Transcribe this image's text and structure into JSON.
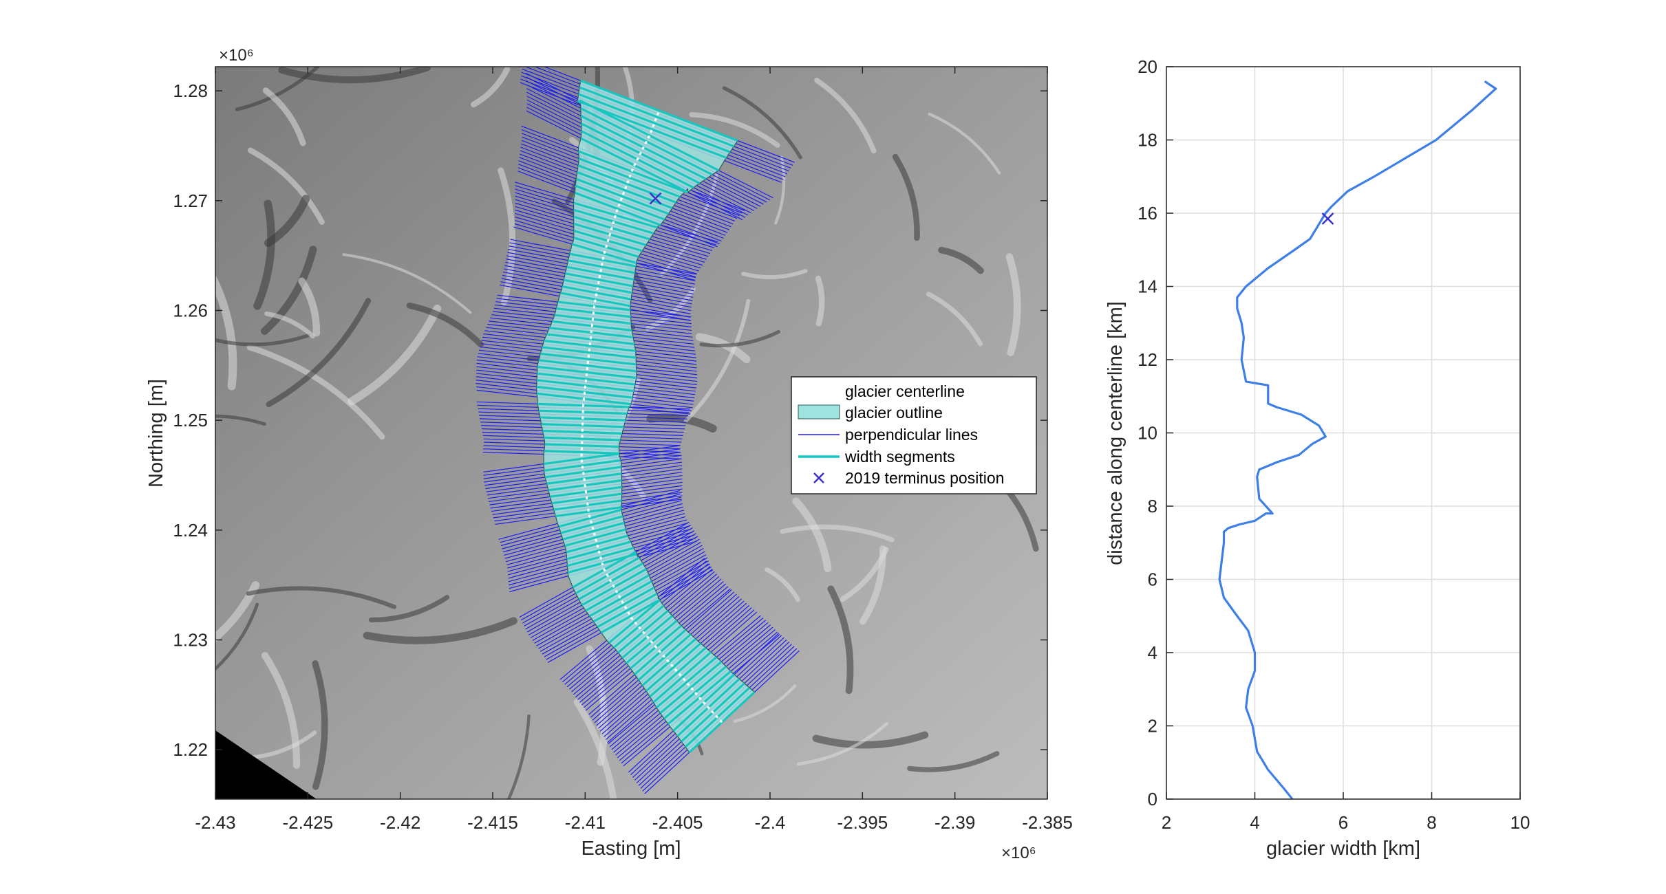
{
  "chart_data": [
    {
      "type": "map",
      "xlabel": "Easting [m]",
      "ylabel": "Northing [m]",
      "x_exponent_label": "×10⁶",
      "y_exponent_label": "×10⁶",
      "xlim": [
        -2.43,
        -2.385
      ],
      "ylim": [
        1.2155,
        1.2822
      ],
      "x_ticks": [
        -2.43,
        -2.425,
        -2.42,
        -2.415,
        -2.41,
        -2.405,
        -2.4,
        -2.395,
        -2.39,
        -2.385
      ],
      "x_tick_labels": [
        "-2.43",
        "-2.425",
        "-2.42",
        "-2.415",
        "-2.41",
        "-2.405",
        "-2.4",
        "-2.395",
        "-2.39",
        "-2.385"
      ],
      "y_ticks": [
        1.22,
        1.23,
        1.24,
        1.25,
        1.26,
        1.27,
        1.28
      ],
      "y_tick_labels": [
        "1.22",
        "1.23",
        "1.24",
        "1.25",
        "1.26",
        "1.27",
        "1.28"
      ],
      "centerline": {
        "x": [
          -2.4026,
          -2.4037,
          -2.4047,
          -2.406,
          -2.4075,
          -2.409,
          -2.4098,
          -2.4102,
          -2.4101,
          -2.4098,
          -2.4095,
          -2.409,
          -2.4083,
          -2.4074,
          -2.4065,
          -2.406
        ],
        "y": [
          1.2225,
          1.2245,
          1.2265,
          1.229,
          1.232,
          1.2365,
          1.2415,
          1.2465,
          1.2515,
          1.256,
          1.2605,
          1.265,
          1.269,
          1.273,
          1.276,
          1.2782
        ]
      },
      "width_km_along_centerline": [
        4.8,
        4.5,
        4.3,
        3.9,
        3.6,
        3.5,
        3.7,
        4.0,
        3.9,
        3.4,
        3.5,
        3.9,
        4.2,
        4.0,
        4.6,
        5.2,
        5.4,
        5.0,
        4.2,
        3.8,
        3.7,
        3.6,
        4.4,
        5.2,
        5.8,
        7.0,
        8.5,
        9.1
      ],
      "terminus": {
        "x": -2.4062,
        "y": 1.2702
      },
      "legend": {
        "placement": "right",
        "entries": [
          {
            "label": "glacier centerline",
            "color": "#ffffff"
          },
          {
            "label": "glacier outline",
            "color": "#3cc8c0"
          },
          {
            "label": "perpendicular lines",
            "color": "#1a1aff"
          },
          {
            "label": "width segments",
            "color": "#18c6c0"
          },
          {
            "label": "2019 terminus position",
            "color": "#3b2fc9"
          }
        ]
      },
      "colors": {
        "perpendicular": "#1a1aff",
        "width_segment": "#18c6c0",
        "marker": "#3b2fc9",
        "terrain": "#8e8e8e"
      }
    },
    {
      "type": "line",
      "xlabel": "glacier width [km]",
      "ylabel": "distance along centerline [km]",
      "xlim": [
        2,
        10
      ],
      "ylim": [
        0,
        20
      ],
      "x_ticks": [
        2,
        4,
        6,
        8,
        10
      ],
      "x_tick_labels": [
        "2",
        "4",
        "6",
        "8",
        "10"
      ],
      "y_ticks": [
        0,
        2,
        4,
        6,
        8,
        10,
        12,
        14,
        16,
        18,
        20
      ],
      "y_tick_labels": [
        "0",
        "2",
        "4",
        "6",
        "8",
        "10",
        "12",
        "14",
        "16",
        "18",
        "20"
      ],
      "grid": true,
      "series": [
        {
          "color": "#3d7fe6",
          "x": [
            4.85,
            4.65,
            4.3,
            4.05,
            3.95,
            3.8,
            3.85,
            4.0,
            4.0,
            3.85,
            3.6,
            3.3,
            3.2,
            3.25,
            3.3,
            3.3,
            3.4,
            3.65,
            4.0,
            4.25,
            4.4,
            4.1,
            4.05,
            4.1,
            4.5,
            5.0,
            5.3,
            5.6,
            5.45,
            5.05,
            4.5,
            4.3,
            4.3,
            3.8,
            3.7,
            3.75,
            3.7,
            3.6,
            3.6,
            3.8,
            4.3,
            4.9,
            5.25,
            5.45,
            5.6,
            5.75,
            6.1,
            6.7,
            7.4,
            8.1,
            8.9,
            9.45,
            9.2
          ],
          "y": [
            0.0,
            0.3,
            0.8,
            1.3,
            2.0,
            2.5,
            3.0,
            3.5,
            4.0,
            4.6,
            5.0,
            5.5,
            6.0,
            6.5,
            7.0,
            7.3,
            7.4,
            7.5,
            7.6,
            7.8,
            7.8,
            8.2,
            8.8,
            9.0,
            9.2,
            9.4,
            9.7,
            9.9,
            10.2,
            10.5,
            10.7,
            10.8,
            11.3,
            11.4,
            12.0,
            12.6,
            13.0,
            13.4,
            13.7,
            14.0,
            14.5,
            15.0,
            15.3,
            15.7,
            16.0,
            16.2,
            16.6,
            17.0,
            17.5,
            18.0,
            18.8,
            19.4,
            19.6
          ]
        }
      ],
      "markers": [
        {
          "x": 5.65,
          "y": 15.85,
          "symbol": "x",
          "color": "#3b2fc9"
        }
      ]
    }
  ]
}
